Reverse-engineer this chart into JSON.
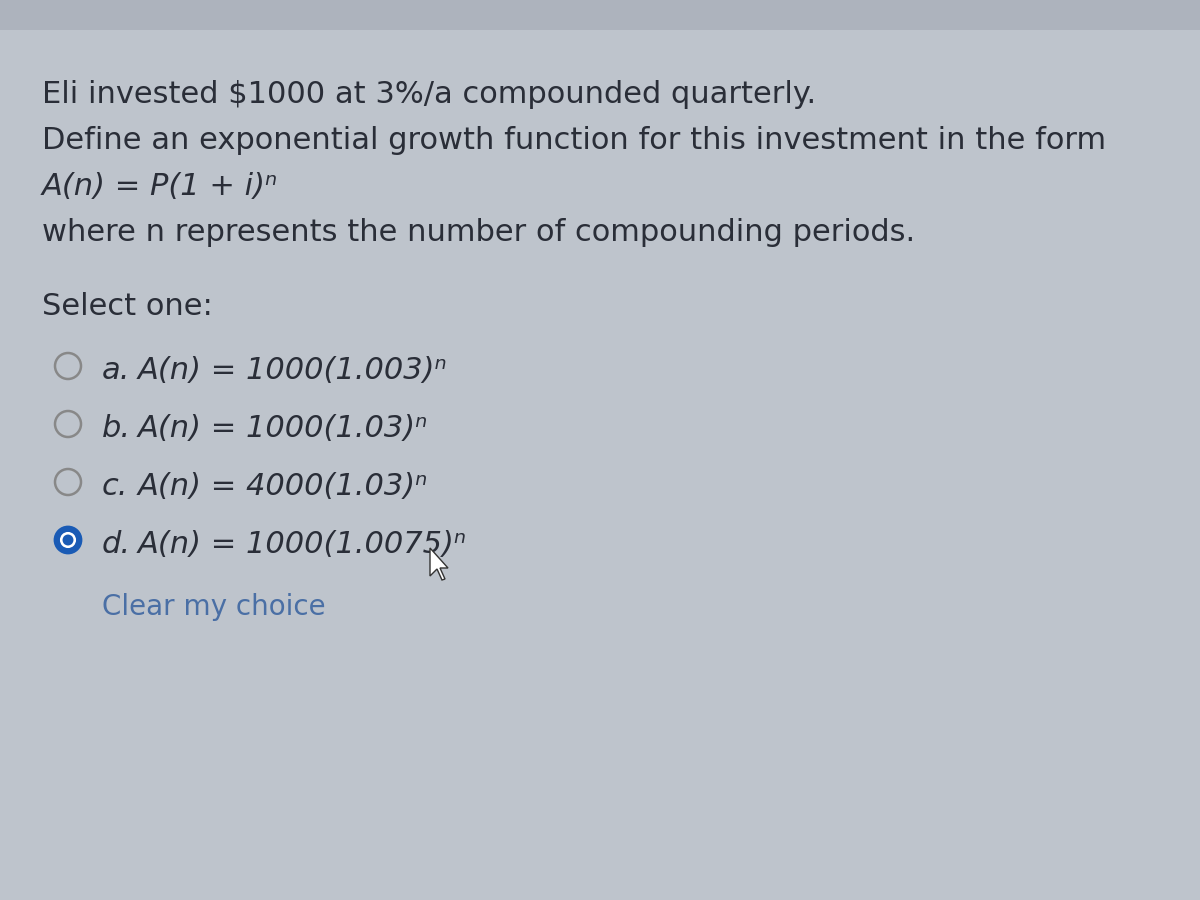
{
  "bg_top": "#b8bec8",
  "bg_main": "#bec4cc",
  "bg_content": "#c8cdd5",
  "text_color": "#2a2e38",
  "link_color": "#4a6fa5",
  "title_line1": "Eli invested $1000 at 3%/a compounded quarterly.",
  "title_line2": "Define an exponential growth function for this investment in the form",
  "title_line3": "A(n) = P(1 + i)ⁿ",
  "title_line4": "where n represents the number of compounding periods.",
  "select_label": "Select one:",
  "options": [
    {
      "letter": "a.",
      "text": "A(n) = 1000(1.003)ⁿ",
      "selected": false
    },
    {
      "letter": "b.",
      "text": "A(n) = 1000(1.03)ⁿ",
      "selected": false
    },
    {
      "letter": "c.",
      "text": "A(n) = 4000(1.03)ⁿ",
      "selected": false
    },
    {
      "letter": "d.",
      "text": "A(n) = 1000(1.0075)ⁿ",
      "selected": true
    }
  ],
  "clear_choice": "Clear my choice",
  "selected_fill": "#1a5bb5",
  "selected_edge": "#1a5bb5",
  "unselected_edge": "#888888",
  "cursor_color": "#333333"
}
